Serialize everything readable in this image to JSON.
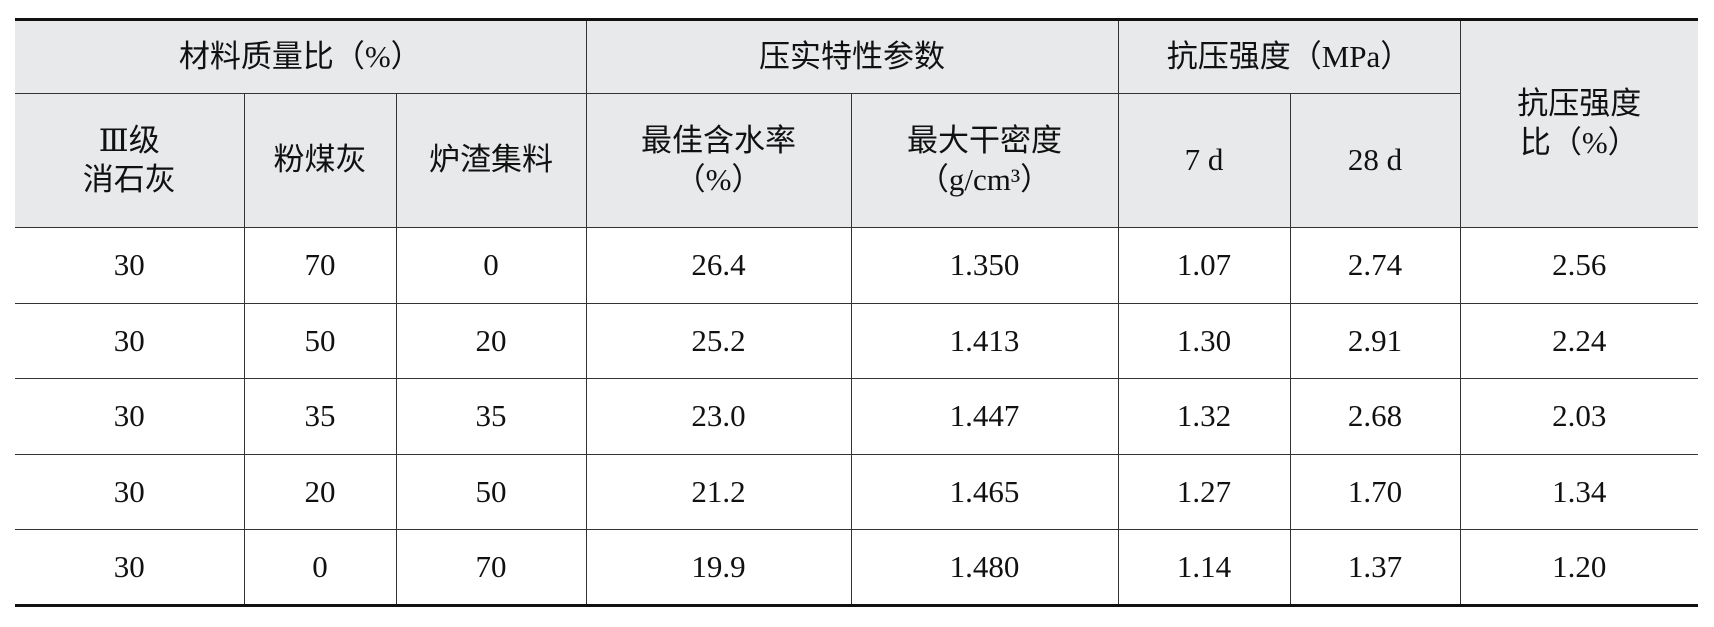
{
  "table": {
    "header": {
      "groups": [
        "材料质量比（%）",
        "压实特性参数",
        "抗压强度（MPa）"
      ],
      "ratio": [
        "抗压强度",
        "比（%）"
      ],
      "columns": [
        [
          "Ⅲ级",
          "消石灰"
        ],
        [
          "粉煤灰"
        ],
        [
          "炉渣集料"
        ],
        [
          "最佳含水率",
          "（%）"
        ],
        [
          "最大干密度",
          "（g/cm³）"
        ],
        [
          "7 d"
        ],
        [
          "28 d"
        ]
      ]
    },
    "rows": [
      [
        "30",
        "70",
        "0",
        "26.4",
        "1.350",
        "1.07",
        "2.74",
        "2.56"
      ],
      [
        "30",
        "50",
        "20",
        "25.2",
        "1.413",
        "1.30",
        "2.91",
        "2.24"
      ],
      [
        "30",
        "35",
        "35",
        "23.0",
        "1.447",
        "1.32",
        "2.68",
        "2.03"
      ],
      [
        "30",
        "20",
        "50",
        "21.2",
        "1.465",
        "1.27",
        "1.70",
        "1.34"
      ],
      [
        "30",
        "0",
        "70",
        "19.9",
        "1.480",
        "1.14",
        "1.37",
        "1.20"
      ]
    ]
  }
}
